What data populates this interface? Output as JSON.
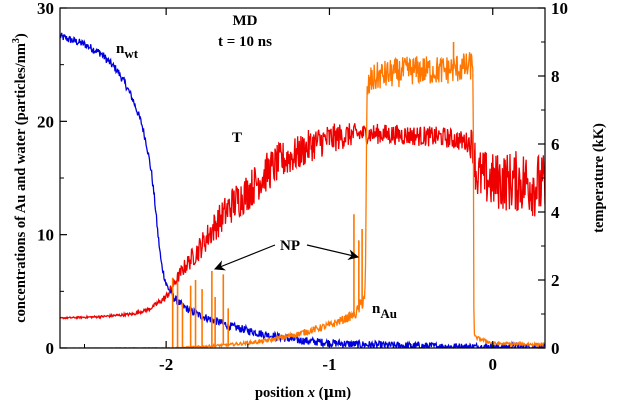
{
  "chart_data": {
    "type": "line",
    "title": "MD",
    "subtitle": "t = 10 ns",
    "xlabel": "position x (μm)",
    "xlabel_parts": {
      "before": "position ",
      "var": "x",
      "after": " (",
      "unit_mu": "μ",
      "unit_rest": "m)"
    },
    "ylabel_left": "concentrations of Au and water (particles/nm³)",
    "ylabel_left_parts": {
      "text": "concentrations of Au and water (particles/nm",
      "sup": "3",
      "close": ")"
    },
    "ylabel_right": "temperature (kK)",
    "xlim": [
      -2.65,
      0.32
    ],
    "ylim_left": [
      0,
      30
    ],
    "ylim_right": [
      0,
      10
    ],
    "grid": false,
    "x_ticks": [
      {
        "value": -2,
        "label": "-2"
      },
      {
        "value": -1,
        "label": "-1"
      },
      {
        "value": 0,
        "label": "0"
      }
    ],
    "y_left_ticks": [
      {
        "value": 0,
        "label": "0"
      },
      {
        "value": 10,
        "label": "10"
      },
      {
        "value": 20,
        "label": "20"
      },
      {
        "value": 30,
        "label": "30"
      }
    ],
    "y_right_ticks": [
      {
        "value": 0,
        "label": "0"
      },
      {
        "value": 2,
        "label": "2"
      },
      {
        "value": 4,
        "label": "4"
      },
      {
        "value": 6,
        "label": "6"
      },
      {
        "value": 8,
        "label": "8"
      },
      {
        "value": 10,
        "label": "10"
      }
    ],
    "series": [
      {
        "name": "n_wt",
        "label_main": "n",
        "label_sub": "wt",
        "axis": "left",
        "color": "#0000dd",
        "noise": 0.35,
        "points": [
          [
            -2.65,
            27.5
          ],
          [
            -2.5,
            26.8
          ],
          [
            -2.4,
            26.0
          ],
          [
            -2.3,
            24.5
          ],
          [
            -2.25,
            23.3
          ],
          [
            -2.2,
            21.8
          ],
          [
            -2.15,
            19.8
          ],
          [
            -2.12,
            18.0
          ],
          [
            -2.09,
            15.5
          ],
          [
            -2.07,
            13.0
          ],
          [
            -2.05,
            10.0
          ],
          [
            -2.03,
            7.5
          ],
          [
            -2.0,
            5.6
          ],
          [
            -1.95,
            4.4
          ],
          [
            -1.9,
            3.7
          ],
          [
            -1.8,
            2.9
          ],
          [
            -1.6,
            1.9
          ],
          [
            -1.4,
            1.2
          ],
          [
            -1.2,
            0.7
          ],
          [
            -1.0,
            0.45
          ],
          [
            -0.8,
            0.3
          ],
          [
            -0.5,
            0.18
          ],
          [
            -0.2,
            0.1
          ],
          [
            0.32,
            0.08
          ]
        ]
      },
      {
        "name": "T",
        "label_main": "T",
        "axis": "right",
        "color": "#ee0000",
        "noise_profile": [
          [
            -2.65,
            0.02
          ],
          [
            -2.1,
            0.05
          ],
          [
            -1.95,
            0.15
          ],
          [
            -1.8,
            0.35
          ],
          [
            -1.6,
            0.55
          ],
          [
            -1.4,
            0.6
          ],
          [
            -1.0,
            0.45
          ],
          [
            -0.8,
            0.3
          ],
          [
            -0.15,
            0.3
          ],
          [
            -0.1,
            0.8
          ],
          [
            0.32,
            1.0
          ]
        ],
        "points": [
          [
            -2.65,
            0.88
          ],
          [
            -2.4,
            0.92
          ],
          [
            -2.2,
            1.0
          ],
          [
            -2.1,
            1.15
          ],
          [
            -2.0,
            1.5
          ],
          [
            -1.9,
            2.3
          ],
          [
            -1.8,
            2.9
          ],
          [
            -1.7,
            3.6
          ],
          [
            -1.6,
            4.2
          ],
          [
            -1.5,
            4.6
          ],
          [
            -1.4,
            5.1
          ],
          [
            -1.3,
            5.5
          ],
          [
            -1.2,
            5.7
          ],
          [
            -1.1,
            6.0
          ],
          [
            -1.0,
            6.15
          ],
          [
            -0.9,
            6.25
          ],
          [
            -0.8,
            6.3
          ],
          [
            -0.7,
            6.3
          ],
          [
            -0.5,
            6.25
          ],
          [
            -0.3,
            6.2
          ],
          [
            -0.15,
            6.05
          ],
          [
            -0.12,
            6.0
          ],
          [
            -0.1,
            5.1
          ],
          [
            0.0,
            4.9
          ],
          [
            0.1,
            4.9
          ],
          [
            0.2,
            4.9
          ],
          [
            0.32,
            4.7
          ]
        ]
      },
      {
        "name": "n_Au",
        "label_main": "n",
        "label_sub": "Au",
        "axis": "left",
        "color": "#ff7700",
        "noise_profile": [
          [
            -2.65,
            0.0
          ],
          [
            -1.95,
            0.05
          ],
          [
            -1.5,
            0.15
          ],
          [
            -0.85,
            0.4
          ],
          [
            -0.78,
            0.8
          ],
          [
            -0.76,
            1.3
          ],
          [
            -0.12,
            1.3
          ],
          [
            -0.11,
            0.15
          ],
          [
            0.32,
            0.15
          ]
        ],
        "points": [
          [
            -2.65,
            0.0
          ],
          [
            -1.95,
            0.0
          ],
          [
            -1.8,
            0.1
          ],
          [
            -1.6,
            0.3
          ],
          [
            -1.4,
            0.6
          ],
          [
            -1.2,
            1.2
          ],
          [
            -1.0,
            2.0
          ],
          [
            -0.9,
            2.6
          ],
          [
            -0.84,
            3.0
          ],
          [
            -0.8,
            4.0
          ],
          [
            -0.78,
            5.0
          ],
          [
            -0.77,
            22.5
          ],
          [
            -0.75,
            23.5
          ],
          [
            -0.7,
            24.0
          ],
          [
            -0.5,
            24.5
          ],
          [
            -0.3,
            24.5
          ],
          [
            -0.15,
            24.8
          ],
          [
            -0.12,
            25.0
          ],
          [
            -0.115,
            1.0
          ],
          [
            0.0,
            0.4
          ],
          [
            0.32,
            0.3
          ]
        ],
        "spikes": [
          [
            -1.96,
            6.2
          ],
          [
            -1.93,
            5.8
          ],
          [
            -1.9,
            4.0
          ],
          [
            -1.85,
            5.5
          ],
          [
            -1.82,
            6.0
          ],
          [
            -1.78,
            5.2
          ],
          [
            -1.72,
            6.8
          ],
          [
            -1.7,
            4.5
          ],
          [
            -1.65,
            6.5
          ],
          [
            -1.62,
            3.5
          ],
          [
            -0.85,
            11.8
          ],
          [
            -0.82,
            9.5
          ],
          [
            -0.8,
            10.5
          ],
          [
            -0.24,
            27.0
          ]
        ]
      }
    ],
    "annotations": {
      "np_label": "NP",
      "np_arrow_targets": [
        [
          -1.77,
          7.5
        ],
        [
          -0.81,
          8.2
        ]
      ],
      "np_text_position": [
        -1.3,
        9.0
      ]
    }
  }
}
